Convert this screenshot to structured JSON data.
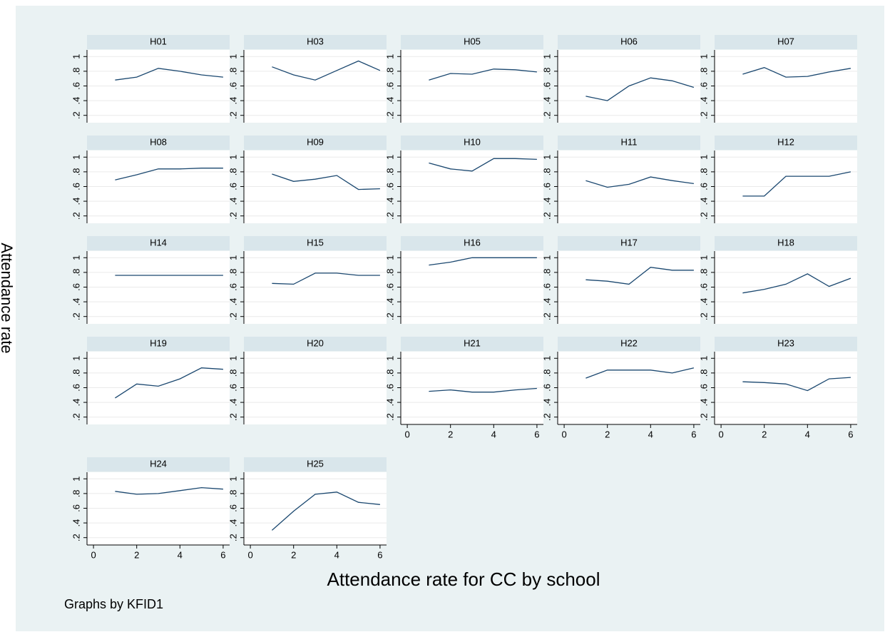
{
  "xlabel": "Attendance rate for CC by school",
  "ylabel": "Attendance rate",
  "note": "Graphs by KFID1",
  "chart_data": [
    {
      "type": "line",
      "title": "H01",
      "x": [
        1,
        2,
        3,
        4,
        5,
        6
      ],
      "values": [
        0.68,
        0.72,
        0.84,
        0.8,
        0.75,
        0.72
      ],
      "color": "#1a476f",
      "xlim": [
        -0.3,
        6.3
      ],
      "ylim": [
        0.1,
        1.09
      ],
      "yticks": [
        {
          "value": 0.2,
          "label": ".2"
        },
        {
          "value": 0.4,
          "label": ".4"
        },
        {
          "value": 0.6,
          "label": ".6"
        },
        {
          "value": 0.8,
          "label": ".8"
        },
        1
      ],
      "grid": true
    },
    {
      "type": "line",
      "title": "H03",
      "x": [
        1,
        2,
        3,
        4,
        5,
        6
      ],
      "values": [
        0.86,
        0.75,
        0.68,
        0.81,
        0.94,
        0.81
      ],
      "color": "#1a476f",
      "xlim": [
        -0.3,
        6.3
      ],
      "ylim": [
        0.1,
        1.09
      ],
      "yticks": [
        {
          "value": 0.2,
          "label": ".2"
        },
        {
          "value": 0.4,
          "label": ".4"
        },
        {
          "value": 0.6,
          "label": ".6"
        },
        {
          "value": 0.8,
          "label": ".8"
        },
        1
      ],
      "grid": true
    },
    {
      "type": "line",
      "title": "H05",
      "x": [
        1,
        2,
        3,
        4,
        5,
        6
      ],
      "values": [
        0.68,
        0.77,
        0.76,
        0.83,
        0.82,
        0.79
      ],
      "color": "#1a476f",
      "xlim": [
        -0.3,
        6.3
      ],
      "ylim": [
        0.1,
        1.09
      ],
      "yticks": [
        {
          "value": 0.2,
          "label": ".2"
        },
        {
          "value": 0.4,
          "label": ".4"
        },
        {
          "value": 0.6,
          "label": ".6"
        },
        {
          "value": 0.8,
          "label": ".8"
        },
        1
      ],
      "grid": true
    },
    {
      "type": "line",
      "title": "H06",
      "x": [
        1,
        2,
        3,
        4,
        5,
        6
      ],
      "values": [
        0.46,
        0.4,
        0.6,
        0.71,
        0.67,
        0.58
      ],
      "color": "#1a476f",
      "xlim": [
        -0.3,
        6.3
      ],
      "ylim": [
        0.1,
        1.09
      ],
      "yticks": [
        {
          "value": 0.2,
          "label": ".2"
        },
        {
          "value": 0.4,
          "label": ".4"
        },
        {
          "value": 0.6,
          "label": ".6"
        },
        {
          "value": 0.8,
          "label": ".8"
        },
        1
      ],
      "grid": true
    },
    {
      "type": "line",
      "title": "H07",
      "x": [
        1,
        2,
        3,
        4,
        5,
        6
      ],
      "values": [
        0.76,
        0.85,
        0.72,
        0.73,
        0.79,
        0.84
      ],
      "color": "#1a476f",
      "xlim": [
        -0.3,
        6.3
      ],
      "ylim": [
        0.1,
        1.09
      ],
      "yticks": [
        {
          "value": 0.2,
          "label": ".2"
        },
        {
          "value": 0.4,
          "label": ".4"
        },
        {
          "value": 0.6,
          "label": ".6"
        },
        {
          "value": 0.8,
          "label": ".8"
        },
        1
      ],
      "grid": true
    },
    {
      "type": "line",
      "title": "H08",
      "x": [
        1,
        2,
        3,
        4,
        5,
        6
      ],
      "values": [
        0.69,
        0.76,
        0.84,
        0.84,
        0.85,
        0.85
      ],
      "color": "#1a476f",
      "xlim": [
        -0.3,
        6.3
      ],
      "ylim": [
        0.1,
        1.09
      ],
      "yticks": [
        {
          "value": 0.2,
          "label": ".2"
        },
        {
          "value": 0.4,
          "label": ".4"
        },
        {
          "value": 0.6,
          "label": ".6"
        },
        {
          "value": 0.8,
          "label": ".8"
        },
        1
      ],
      "grid": true
    },
    {
      "type": "line",
      "title": "H09",
      "x": [
        1,
        2,
        3,
        4,
        5,
        6
      ],
      "values": [
        0.77,
        0.67,
        0.7,
        0.75,
        0.56,
        0.57
      ],
      "color": "#1a476f",
      "xlim": [
        -0.3,
        6.3
      ],
      "ylim": [
        0.1,
        1.09
      ],
      "yticks": [
        {
          "value": 0.2,
          "label": ".2"
        },
        {
          "value": 0.4,
          "label": ".4"
        },
        {
          "value": 0.6,
          "label": ".6"
        },
        {
          "value": 0.8,
          "label": ".8"
        },
        1
      ],
      "grid": true
    },
    {
      "type": "line",
      "title": "H10",
      "x": [
        1,
        2,
        3,
        4,
        5,
        6
      ],
      "values": [
        0.92,
        0.84,
        0.81,
        0.98,
        0.98,
        0.97
      ],
      "color": "#1a476f",
      "xlim": [
        -0.3,
        6.3
      ],
      "ylim": [
        0.1,
        1.09
      ],
      "yticks": [
        {
          "value": 0.2,
          "label": ".2"
        },
        {
          "value": 0.4,
          "label": ".4"
        },
        {
          "value": 0.6,
          "label": ".6"
        },
        {
          "value": 0.8,
          "label": ".8"
        },
        1
      ],
      "grid": true
    },
    {
      "type": "line",
      "title": "H11",
      "x": [
        1,
        2,
        3,
        4,
        5,
        6
      ],
      "values": [
        0.68,
        0.59,
        0.63,
        0.73,
        0.68,
        0.64
      ],
      "color": "#1a476f",
      "xlim": [
        -0.3,
        6.3
      ],
      "ylim": [
        0.1,
        1.09
      ],
      "yticks": [
        {
          "value": 0.2,
          "label": ".2"
        },
        {
          "value": 0.4,
          "label": ".4"
        },
        {
          "value": 0.6,
          "label": ".6"
        },
        {
          "value": 0.8,
          "label": ".8"
        },
        1
      ],
      "grid": true
    },
    {
      "type": "line",
      "title": "H12",
      "x": [
        1,
        2,
        3,
        4,
        5,
        6
      ],
      "values": [
        0.47,
        0.47,
        0.74,
        0.74,
        0.74,
        0.8
      ],
      "color": "#1a476f",
      "xlim": [
        -0.3,
        6.3
      ],
      "ylim": [
        0.1,
        1.09
      ],
      "yticks": [
        {
          "value": 0.2,
          "label": ".2"
        },
        {
          "value": 0.4,
          "label": ".4"
        },
        {
          "value": 0.6,
          "label": ".6"
        },
        {
          "value": 0.8,
          "label": ".8"
        },
        1
      ],
      "grid": true
    },
    {
      "type": "line",
      "title": "H14",
      "x": [
        1,
        2,
        3,
        4,
        5,
        6
      ],
      "values": [
        0.76,
        0.76,
        0.76,
        0.76,
        0.76,
        0.76
      ],
      "color": "#1a476f",
      "xlim": [
        -0.3,
        6.3
      ],
      "ylim": [
        0.1,
        1.09
      ],
      "yticks": [
        {
          "value": 0.2,
          "label": ".2"
        },
        {
          "value": 0.4,
          "label": ".4"
        },
        {
          "value": 0.6,
          "label": ".6"
        },
        {
          "value": 0.8,
          "label": ".8"
        },
        1
      ],
      "grid": true
    },
    {
      "type": "line",
      "title": "H15",
      "x": [
        1,
        2,
        3,
        4,
        5,
        6
      ],
      "values": [
        0.65,
        0.64,
        0.79,
        0.79,
        0.76,
        0.76
      ],
      "color": "#1a476f",
      "xlim": [
        -0.3,
        6.3
      ],
      "ylim": [
        0.1,
        1.09
      ],
      "yticks": [
        {
          "value": 0.2,
          "label": ".2"
        },
        {
          "value": 0.4,
          "label": ".4"
        },
        {
          "value": 0.6,
          "label": ".6"
        },
        {
          "value": 0.8,
          "label": ".8"
        },
        1
      ],
      "grid": true
    },
    {
      "type": "line",
      "title": "H16",
      "x": [
        1,
        2,
        3,
        4,
        5,
        6
      ],
      "values": [
        0.9,
        0.94,
        1,
        1,
        1,
        1
      ],
      "color": "#1a476f",
      "xlim": [
        -0.3,
        6.3
      ],
      "ylim": [
        0.1,
        1.09
      ],
      "yticks": [
        {
          "value": 0.2,
          "label": ".2"
        },
        {
          "value": 0.4,
          "label": ".4"
        },
        {
          "value": 0.6,
          "label": ".6"
        },
        {
          "value": 0.8,
          "label": ".8"
        },
        1
      ],
      "grid": true
    },
    {
      "type": "line",
      "title": "H17",
      "x": [
        1,
        2,
        3,
        4,
        5,
        6
      ],
      "values": [
        0.7,
        0.68,
        0.64,
        0.87,
        0.83,
        0.83
      ],
      "color": "#1a476f",
      "xlim": [
        -0.3,
        6.3
      ],
      "ylim": [
        0.1,
        1.09
      ],
      "yticks": [
        {
          "value": 0.2,
          "label": ".2"
        },
        {
          "value": 0.4,
          "label": ".4"
        },
        {
          "value": 0.6,
          "label": ".6"
        },
        {
          "value": 0.8,
          "label": ".8"
        },
        1
      ],
      "grid": true
    },
    {
      "type": "line",
      "title": "H18",
      "x": [
        1,
        2,
        3,
        4,
        5,
        6
      ],
      "values": [
        0.52,
        0.57,
        0.64,
        0.78,
        0.61,
        0.72
      ],
      "color": "#1a476f",
      "xlim": [
        -0.3,
        6.3
      ],
      "ylim": [
        0.1,
        1.09
      ],
      "yticks": [
        {
          "value": 0.2,
          "label": ".2"
        },
        {
          "value": 0.4,
          "label": ".4"
        },
        {
          "value": 0.6,
          "label": ".6"
        },
        {
          "value": 0.8,
          "label": ".8"
        },
        1
      ],
      "grid": true
    },
    {
      "type": "line",
      "title": "H19",
      "x": [
        1,
        2,
        3,
        4,
        5,
        6
      ],
      "values": [
        0.46,
        0.65,
        0.62,
        0.72,
        0.87,
        0.85
      ],
      "color": "#1a476f",
      "xlim": [
        -0.3,
        6.3
      ],
      "ylim": [
        0.1,
        1.09
      ],
      "yticks": [
        {
          "value": 0.2,
          "label": ".2"
        },
        {
          "value": 0.4,
          "label": ".4"
        },
        {
          "value": 0.6,
          "label": ".6"
        },
        {
          "value": 0.8,
          "label": ".8"
        },
        1
      ],
      "grid": true
    },
    {
      "type": "line",
      "title": "H20",
      "x": [],
      "values": [],
      "color": "#1a476f",
      "xlim": [
        -0.3,
        6.3
      ],
      "ylim": [
        0.1,
        1.09
      ],
      "yticks": [
        {
          "value": 0.2,
          "label": ".2"
        },
        {
          "value": 0.4,
          "label": ".4"
        },
        {
          "value": 0.6,
          "label": ".6"
        },
        {
          "value": 0.8,
          "label": ".8"
        },
        1
      ],
      "grid": true
    },
    {
      "type": "line",
      "title": "H21",
      "x": [
        1,
        2,
        3,
        4,
        5,
        6
      ],
      "values": [
        0.55,
        0.57,
        0.54,
        0.54,
        0.57,
        0.59
      ],
      "color": "#1a476f",
      "xlim": [
        -0.3,
        6.3
      ],
      "ylim": [
        0.1,
        1.09
      ],
      "xticks": [
        0,
        2,
        4,
        6
      ],
      "yticks": [
        {
          "value": 0.2,
          "label": ".2"
        },
        {
          "value": 0.4,
          "label": ".4"
        },
        {
          "value": 0.6,
          "label": ".6"
        },
        {
          "value": 0.8,
          "label": ".8"
        },
        1
      ],
      "grid": true
    },
    {
      "type": "line",
      "title": "H22",
      "x": [
        1,
        2,
        3,
        4,
        5,
        6
      ],
      "values": [
        0.73,
        0.84,
        0.84,
        0.84,
        0.8,
        0.87
      ],
      "color": "#1a476f",
      "xlim": [
        -0.3,
        6.3
      ],
      "ylim": [
        0.1,
        1.09
      ],
      "xticks": [
        0,
        2,
        4,
        6
      ],
      "yticks": [
        {
          "value": 0.2,
          "label": ".2"
        },
        {
          "value": 0.4,
          "label": ".4"
        },
        {
          "value": 0.6,
          "label": ".6"
        },
        {
          "value": 0.8,
          "label": ".8"
        },
        1
      ],
      "grid": true
    },
    {
      "type": "line",
      "title": "H23",
      "x": [
        1,
        2,
        3,
        4,
        5,
        6
      ],
      "values": [
        0.68,
        0.67,
        0.65,
        0.56,
        0.72,
        0.74
      ],
      "color": "#1a476f",
      "xlim": [
        -0.3,
        6.3
      ],
      "ylim": [
        0.1,
        1.09
      ],
      "xticks": [
        0,
        2,
        4,
        6
      ],
      "yticks": [
        {
          "value": 0.2,
          "label": ".2"
        },
        {
          "value": 0.4,
          "label": ".4"
        },
        {
          "value": 0.6,
          "label": ".6"
        },
        {
          "value": 0.8,
          "label": ".8"
        },
        1
      ],
      "grid": true
    },
    {
      "type": "line",
      "title": "H24",
      "x": [
        1,
        2,
        3,
        4,
        5,
        6
      ],
      "values": [
        0.83,
        0.79,
        0.8,
        0.84,
        0.88,
        0.86
      ],
      "color": "#1a476f",
      "xlim": [
        -0.3,
        6.3
      ],
      "ylim": [
        0.1,
        1.09
      ],
      "xticks": [
        0,
        2,
        4,
        6
      ],
      "yticks": [
        {
          "value": 0.2,
          "label": ".2"
        },
        {
          "value": 0.4,
          "label": ".4"
        },
        {
          "value": 0.6,
          "label": ".6"
        },
        {
          "value": 0.8,
          "label": ".8"
        },
        1
      ],
      "grid": true
    },
    {
      "type": "line",
      "title": "H25",
      "x": [
        1,
        2,
        3,
        4,
        5,
        6
      ],
      "values": [
        0.3,
        0.56,
        0.79,
        0.82,
        0.68,
        0.65
      ],
      "color": "#1a476f",
      "xlim": [
        -0.3,
        6.3
      ],
      "ylim": [
        0.1,
        1.09
      ],
      "xticks": [
        0,
        2,
        4,
        6
      ],
      "yticks": [
        {
          "value": 0.2,
          "label": ".2"
        },
        {
          "value": 0.4,
          "label": ".4"
        },
        {
          "value": 0.6,
          "label": ".6"
        },
        {
          "value": 0.8,
          "label": ".8"
        },
        1
      ],
      "grid": true
    }
  ]
}
